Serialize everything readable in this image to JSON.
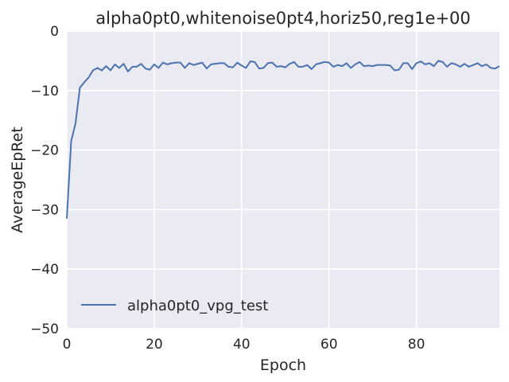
{
  "chart_data": {
    "type": "line",
    "title": "alpha0pt0,whitenoise0pt4,horiz50,reg1e+00",
    "xlabel": "Epoch",
    "ylabel": "AverageEpRet",
    "xlim": [
      0,
      99
    ],
    "ylim": [
      -50,
      0
    ],
    "xticks": [
      0,
      20,
      40,
      60,
      80
    ],
    "xtick_labels": [
      "0",
      "20",
      "40",
      "60",
      "80"
    ],
    "yticks": [
      0,
      -10,
      -20,
      -30,
      -40,
      -50
    ],
    "ytick_labels": [
      "0",
      "−10",
      "−20",
      "−30",
      "−40",
      "−50"
    ],
    "grid": true,
    "background": "#EAEAF2",
    "grid_color": "#FFFFFF",
    "legend_position": "lower-left",
    "series": [
      {
        "name": "alpha0pt0_vpg_test",
        "color": "#4C72B0",
        "x": [
          0,
          1,
          2,
          3,
          4,
          5,
          6,
          7,
          8,
          9,
          10,
          11,
          12,
          13,
          14,
          15,
          16,
          17,
          18,
          19,
          20,
          21,
          22,
          23,
          24,
          25,
          26,
          27,
          28,
          29,
          30,
          31,
          32,
          33,
          34,
          35,
          36,
          37,
          38,
          39,
          40,
          41,
          42,
          43,
          44,
          45,
          46,
          47,
          48,
          49,
          50,
          51,
          52,
          53,
          54,
          55,
          56,
          57,
          58,
          59,
          60,
          61,
          62,
          63,
          64,
          65,
          66,
          67,
          68,
          69,
          70,
          71,
          72,
          73,
          74,
          75,
          76,
          77,
          78,
          79,
          80,
          81,
          82,
          83,
          84,
          85,
          86,
          87,
          88,
          89,
          90,
          91,
          92,
          93,
          94,
          95,
          96,
          97,
          98,
          99
        ],
        "values": [
          -31.5,
          -18.5,
          -15.5,
          -9.5,
          -8.6,
          -7.8,
          -6.6,
          -6.2,
          -6.6,
          -5.9,
          -6.6,
          -5.6,
          -6.2,
          -5.5,
          -6.8,
          -6.0,
          -6.0,
          -5.5,
          -6.3,
          -6.5,
          -5.6,
          -6.2,
          -5.3,
          -5.6,
          -5.4,
          -5.3,
          -5.3,
          -6.2,
          -5.4,
          -5.7,
          -5.5,
          -5.3,
          -6.3,
          -5.6,
          -5.5,
          -5.4,
          -5.4,
          -6.0,
          -6.1,
          -5.3,
          -5.8,
          -6.2,
          -5.1,
          -5.2,
          -6.3,
          -6.2,
          -5.4,
          -5.3,
          -6.0,
          -5.9,
          -6.1,
          -5.5,
          -5.2,
          -6.0,
          -6.0,
          -5.7,
          -6.4,
          -5.6,
          -5.4,
          -5.2,
          -5.3,
          -6.0,
          -5.7,
          -5.9,
          -5.4,
          -6.2,
          -5.6,
          -5.2,
          -5.9,
          -5.8,
          -5.9,
          -5.7,
          -5.7,
          -5.7,
          -5.8,
          -6.6,
          -6.5,
          -5.4,
          -5.4,
          -6.4,
          -5.4,
          -5.1,
          -5.6,
          -5.4,
          -5.9,
          -5.0,
          -5.2,
          -6.0,
          -5.4,
          -5.6,
          -6.0,
          -5.5,
          -6.0,
          -5.7,
          -5.4,
          -5.9,
          -5.6,
          -6.2,
          -6.3,
          -5.9
        ]
      }
    ]
  }
}
